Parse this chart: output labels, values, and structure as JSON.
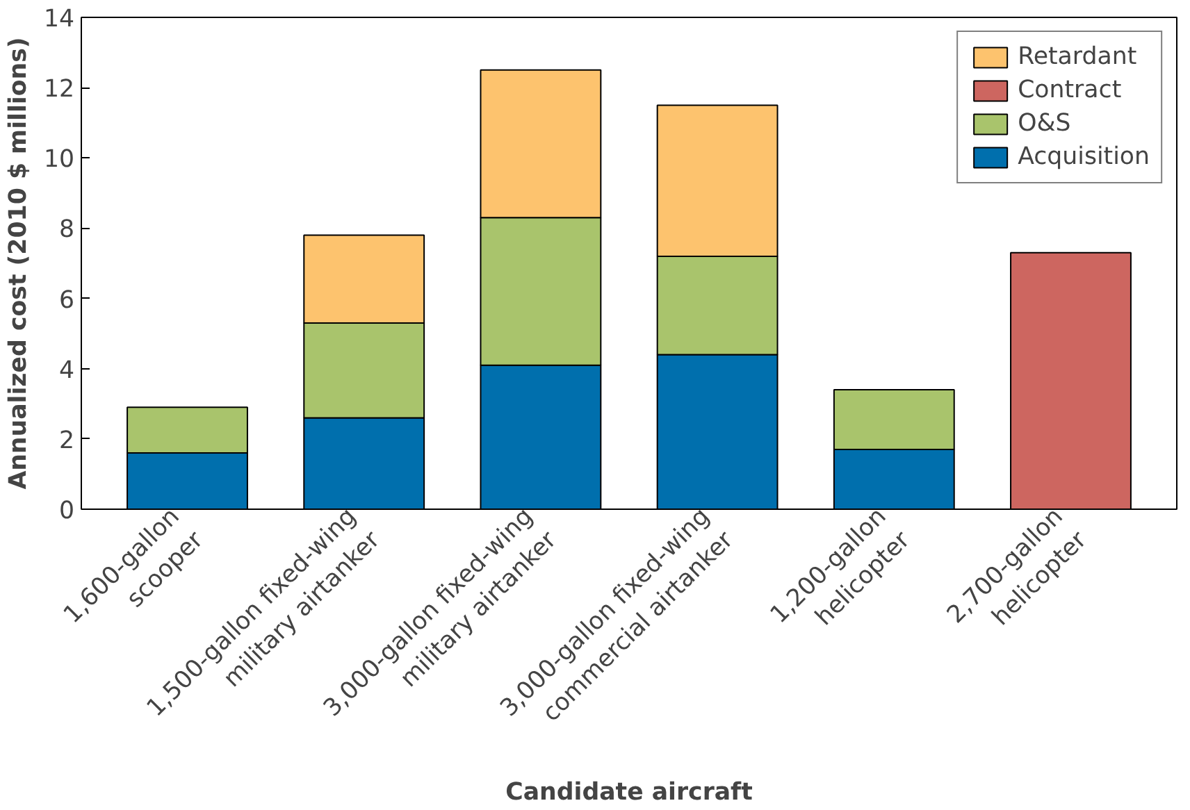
{
  "chart_data": {
    "type": "bar",
    "stacked": true,
    "xlabel": "Candidate aircraft",
    "ylabel": "Annualized cost (2010 $ millions)",
    "categories": [
      "1,600-gallon scooper",
      "1,500-gallon fixed-wing military airtanker",
      "3,000-gallon fixed-wing military airtanker",
      "3,000-gallon fixed-wing commercial airtanker",
      "1,200-gallon helicopter",
      "2,700-gallon helicopter"
    ],
    "series": [
      {
        "name": "Acquisition",
        "color": "#006fad",
        "values": [
          1.6,
          2.6,
          4.1,
          4.4,
          1.7,
          null
        ]
      },
      {
        "name": "O&S",
        "color": "#a9c46c",
        "values": [
          1.3,
          2.7,
          4.2,
          2.8,
          1.7,
          null
        ]
      },
      {
        "name": "Contract",
        "color": "#cd6660",
        "values": [
          null,
          null,
          null,
          null,
          null,
          7.3
        ]
      },
      {
        "name": "Retardant",
        "color": "#fdc36e",
        "values": [
          null,
          2.5,
          4.2,
          4.3,
          null,
          null
        ]
      }
    ],
    "ylim": [
      0,
      14
    ],
    "yticks": [
      0,
      2,
      4,
      6,
      8,
      10,
      12,
      14
    ],
    "grid": false,
    "legend": "top right"
  }
}
